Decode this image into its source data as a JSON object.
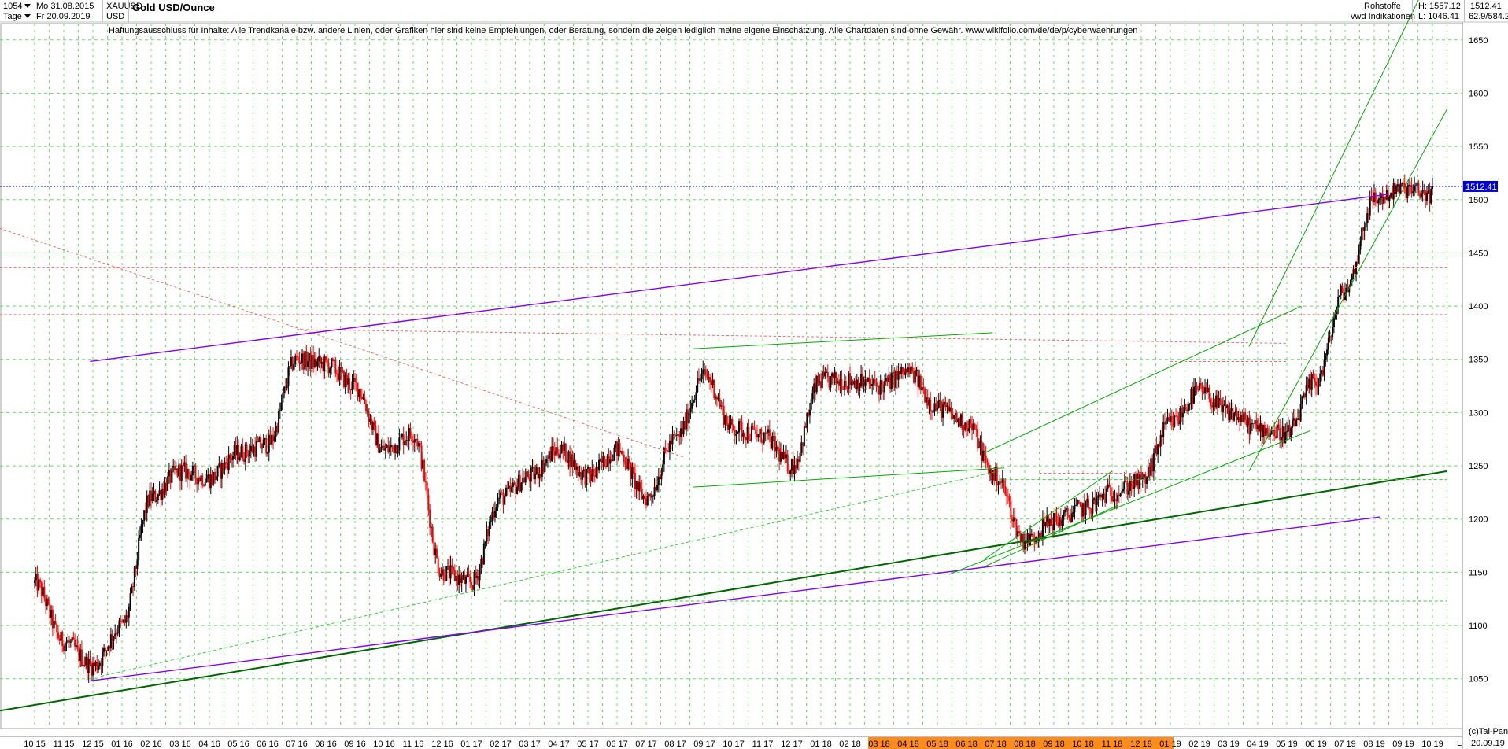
{
  "header": {
    "chart_id": "1054",
    "date_from": "Mo 31.08.2015",
    "symbol": "XAUUSD",
    "period": "Tage",
    "date_to": "Fr 20.09.2019",
    "currency": "USD",
    "title": "Gold USD/Ounce",
    "category": "Rohstoffe",
    "source": "vwd Indikationen",
    "high_label": "H: 1557.12",
    "low_label": "L: 1046.41",
    "last_value": "1512.41",
    "ratio": "62.9/584.2"
  },
  "disclaimer": "Haftungsausschluss für Inhalte: Alle Trendkanäle bzw. andere Linien, oder Grafiken hier sind keine Empfehlungen, oder Beratung, sondern die zeigen lediglich meine eigene Einschätzung. Alle Chartdaten sind ohne Gewähr.  www.wikifolio.com/de/de/p/cyberwaehrungen",
  "footer": {
    "copyright": "(c)Tai-Pan",
    "last_date": "20.09.19",
    "scale_mode": "L"
  },
  "colors": {
    "price_up": "#000000",
    "price_down": "#ff0000",
    "trend_green": "#00aa00",
    "trend_dark_green": "#006600",
    "trend_purple": "#8000ff",
    "support_red": "#ff6060",
    "last_price_line": "#0000cc",
    "grid": "#66dd66",
    "axis_highlight": "#ff8c1a"
  },
  "chart_data": {
    "type": "candlestick",
    "title": "Gold USD/Ounce",
    "y_ticks": [
      1050,
      1100,
      1150,
      1200,
      1250,
      1300,
      1350,
      1400,
      1450,
      1500,
      1550,
      1600,
      1650
    ],
    "ylim": [
      1035,
      1675
    ],
    "x_ticks": [
      "10 15",
      "11 15",
      "12 15",
      "01 16",
      "02 16",
      "03 16",
      "04 16",
      "05 16",
      "06 16",
      "07 16",
      "08 16",
      "09 16",
      "10 16",
      "11 16",
      "12 16",
      "01 17",
      "02 17",
      "03 17",
      "04 17",
      "05 17",
      "06 17",
      "07 17",
      "08 17",
      "09 17",
      "10 17",
      "11 17",
      "12 17",
      "01 18",
      "02 18",
      "03 18",
      "04 18",
      "05 18",
      "06 18",
      "07 18",
      "08 18",
      "09 18",
      "10 18",
      "11 18",
      "12 18",
      "01 19",
      "02 19",
      "03 19",
      "04 19",
      "05 19",
      "06 19",
      "07 19",
      "08 19",
      "09 19",
      "10 19"
    ],
    "price_path": [
      [
        "10 15",
        1140
      ],
      [
        "11 15",
        1085
      ],
      [
        "12 15",
        1062
      ],
      [
        "01 16",
        1100
      ],
      [
        "02 16",
        1220
      ],
      [
        "03 16",
        1245
      ],
      [
        "04 16",
        1238
      ],
      [
        "05 16",
        1262
      ],
      [
        "06 16",
        1270
      ],
      [
        "07 16",
        1350
      ],
      [
        "08 16",
        1345
      ],
      [
        "09 16",
        1325
      ],
      [
        "10 16",
        1265
      ],
      [
        "11 16",
        1280
      ],
      [
        "12 16",
        1150
      ],
      [
        "01 17",
        1140
      ],
      [
        "02 17",
        1220
      ],
      [
        "03 17",
        1240
      ],
      [
        "04 17",
        1265
      ],
      [
        "05 17",
        1240
      ],
      [
        "06 17",
        1265
      ],
      [
        "07 17",
        1220
      ],
      [
        "08 17",
        1275
      ],
      [
        "09 17",
        1335
      ],
      [
        "10 17",
        1285
      ],
      [
        "11 17",
        1278
      ],
      [
        "12 17",
        1250
      ],
      [
        "01 18",
        1330
      ],
      [
        "02 18",
        1330
      ],
      [
        "03 18",
        1325
      ],
      [
        "04 18",
        1338
      ],
      [
        "05 18",
        1305
      ],
      [
        "06 18",
        1290
      ],
      [
        "07 18",
        1240
      ],
      [
        "08 18",
        1180
      ],
      [
        "09 18",
        1198
      ],
      [
        "10 18",
        1210
      ],
      [
        "11 18",
        1225
      ],
      [
        "12 18",
        1235
      ],
      [
        "01 19",
        1290
      ],
      [
        "02 19",
        1320
      ],
      [
        "03 19",
        1300
      ],
      [
        "04 19",
        1285
      ],
      [
        "05 19",
        1280
      ],
      [
        "06 19",
        1330
      ],
      [
        "07 19",
        1415
      ],
      [
        "08 19",
        1500
      ],
      [
        "09 19",
        1510
      ],
      [
        "10 19",
        1505
      ]
    ],
    "last": 1512.41,
    "high": 1557.12,
    "low": 1046.41
  }
}
